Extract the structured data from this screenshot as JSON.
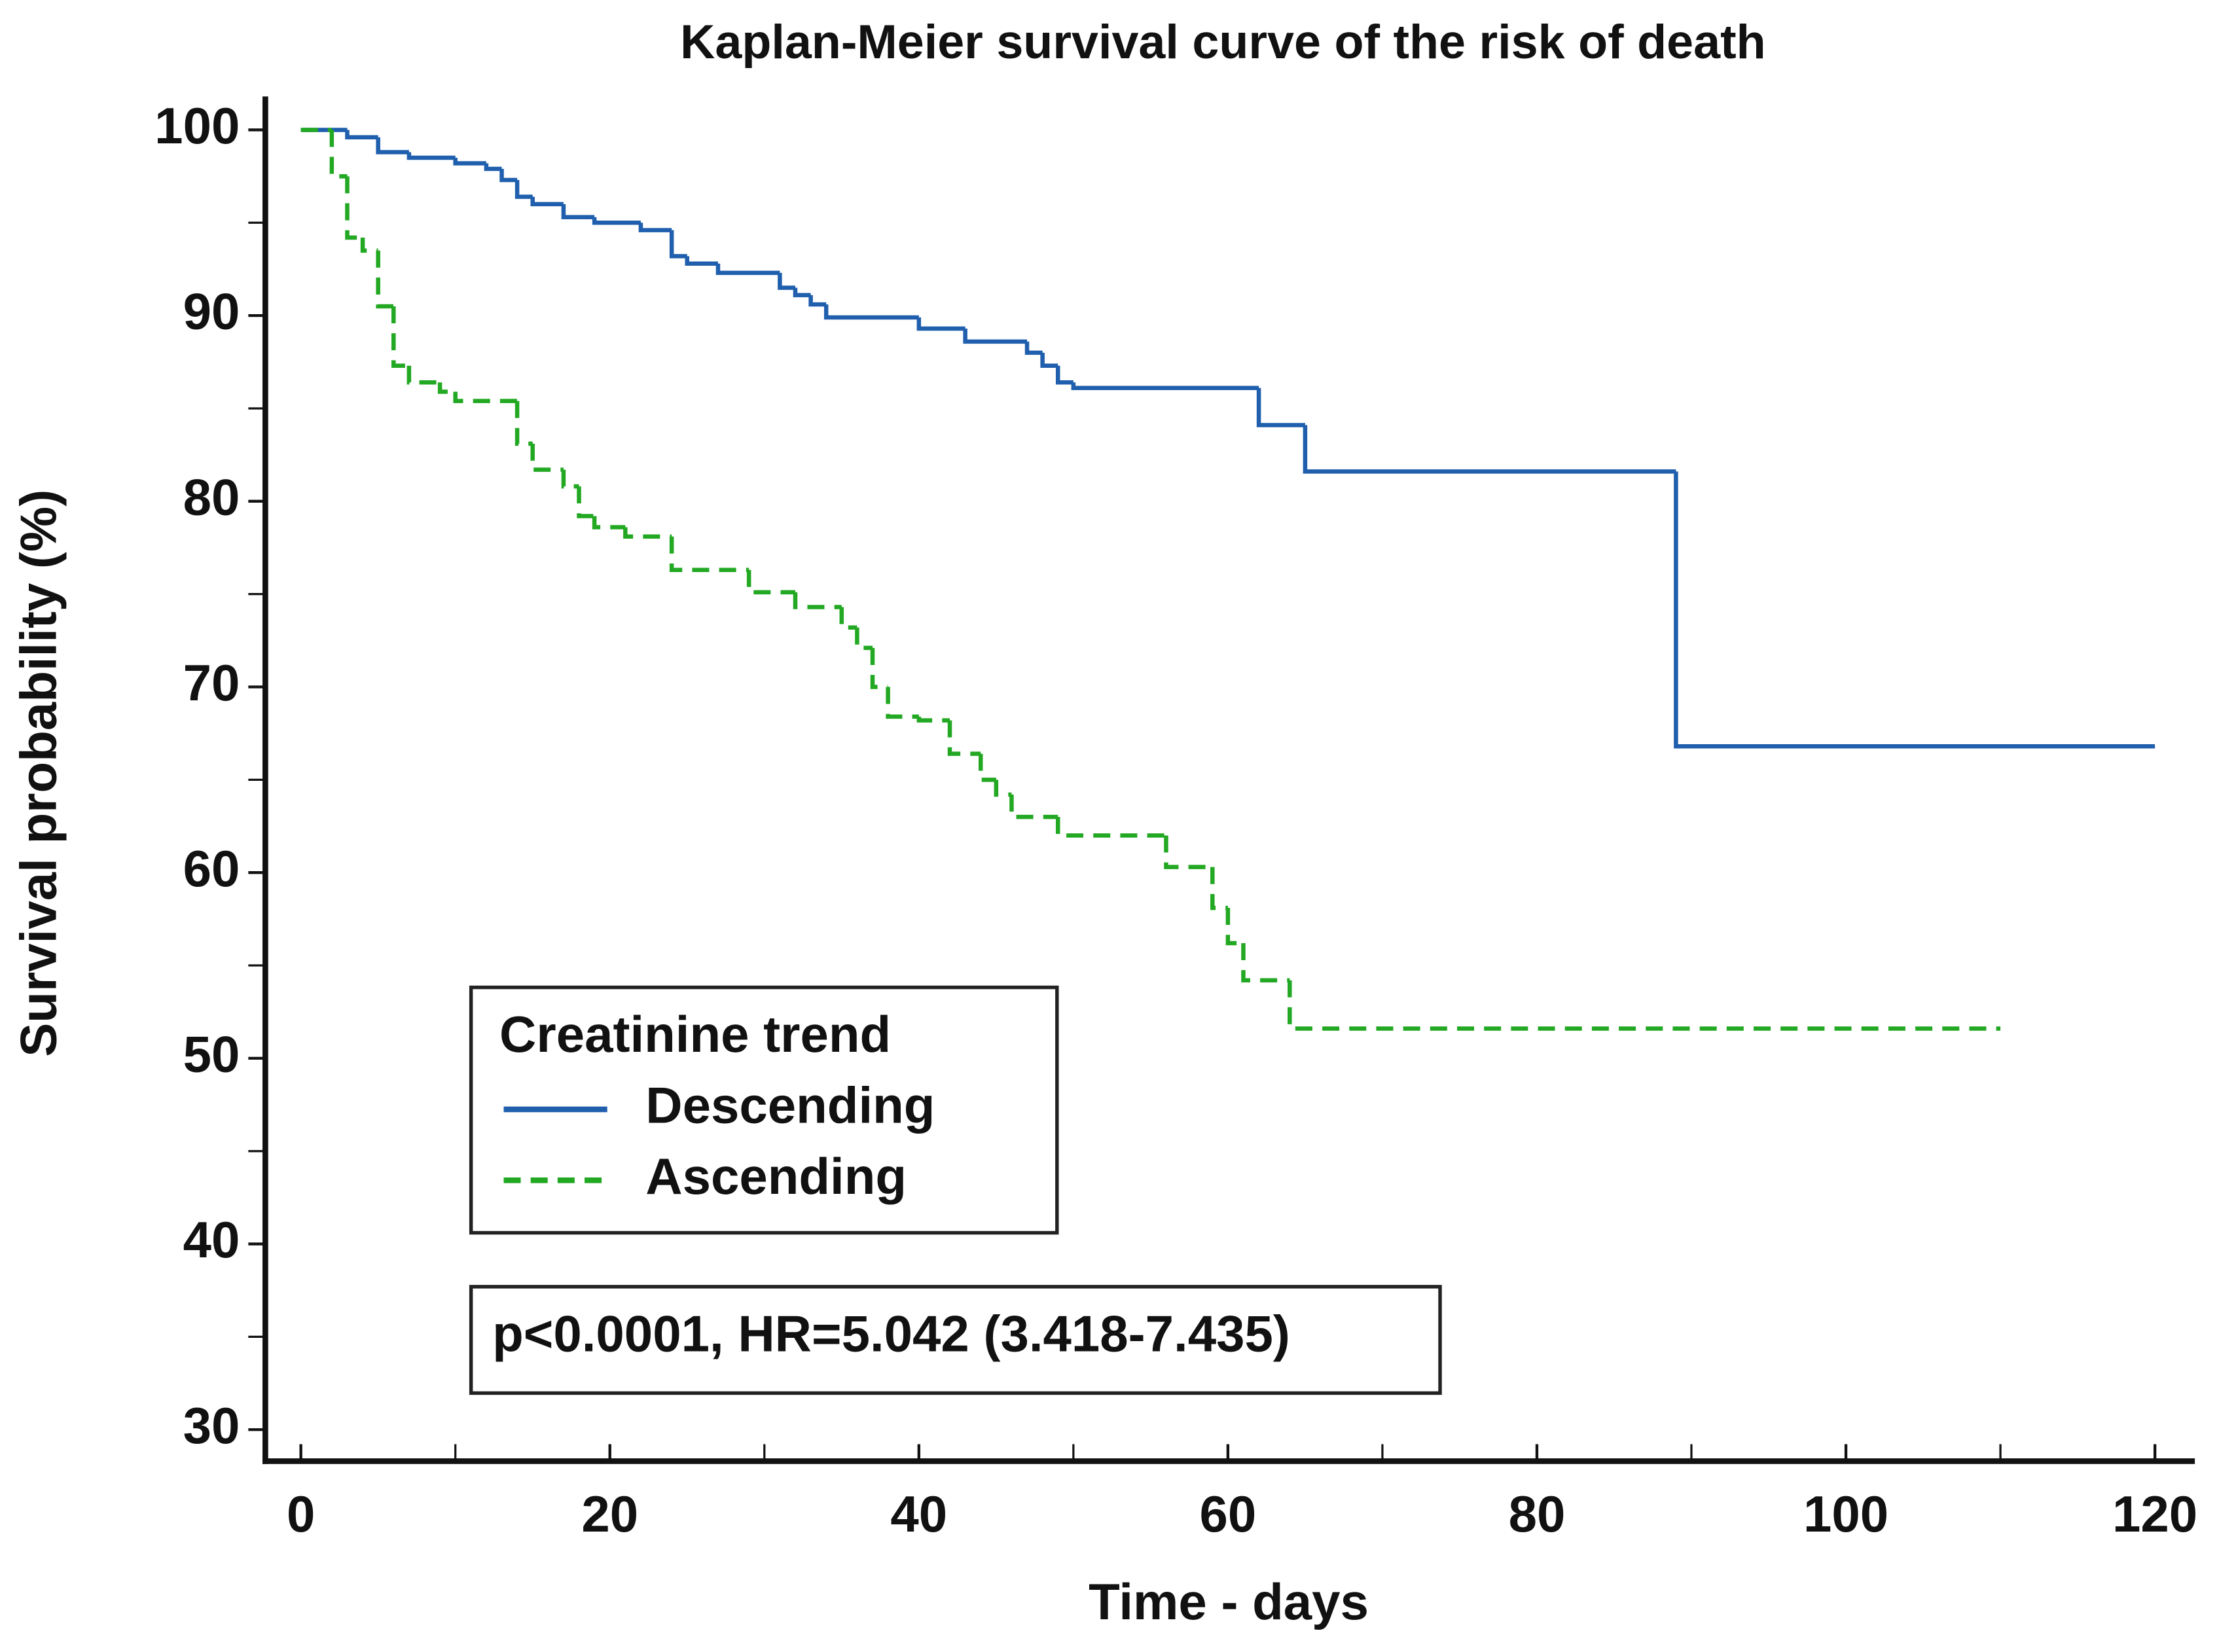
{
  "chart_data": {
    "type": "step",
    "title": "Kaplan-Meier survival curve of the risk of death",
    "x_label": "Time - days",
    "y_label": "Survival probability (%)",
    "xlim": [
      -2.3,
      122.4
    ],
    "ylim": [
      28.3,
      101.8
    ],
    "xticks": [
      0,
      20,
      40,
      60,
      80,
      100,
      120
    ],
    "yticks": [
      30,
      40,
      50,
      60,
      70,
      80,
      90,
      100
    ],
    "xticks_minor": [
      10,
      30,
      50,
      70,
      90,
      110
    ],
    "yticks_minor": [
      35,
      45,
      55,
      65,
      75,
      85,
      95
    ],
    "legend_title": "Creatinine trend",
    "legend_position": "lower left",
    "annotation": "p<0.0001, HR=5.042 (3.418-7.435)",
    "series": [
      {
        "name": "Descending",
        "color": "#1f5fad",
        "line_style": "solid",
        "x": [
          0,
          3,
          5,
          7,
          10,
          12,
          13,
          14,
          15,
          17,
          19,
          22,
          24,
          25,
          27,
          31,
          32,
          33,
          34,
          40,
          43,
          47,
          48,
          49,
          50,
          62,
          65,
          89,
          120
        ],
        "values": [
          100,
          99.6,
          98.8,
          98.5,
          98.2,
          97.9,
          97.3,
          96.4,
          96.0,
          95.3,
          95.0,
          94.6,
          93.2,
          92.8,
          92.3,
          91.5,
          91.1,
          90.6,
          89.9,
          89.3,
          88.6,
          88.0,
          87.3,
          86.4,
          86.1,
          84.1,
          81.6,
          66.8,
          66.8
        ]
      },
      {
        "name": "Ascending",
        "color": "#22a822",
        "line_style": "dashed",
        "x": [
          0,
          2,
          3,
          4,
          5,
          6,
          7,
          9,
          10,
          14,
          15,
          17,
          18,
          19,
          21,
          24,
          29,
          32,
          35,
          36,
          37,
          38,
          40,
          42,
          44,
          45,
          46,
          49,
          56,
          59,
          60,
          61,
          64,
          110
        ],
        "values": [
          100,
          97.5,
          94.2,
          93.5,
          90.5,
          87.3,
          86.4,
          85.9,
          85.4,
          83.1,
          81.7,
          80.8,
          79.2,
          78.6,
          78.1,
          76.3,
          75.1,
          74.3,
          73.2,
          72.1,
          70.0,
          68.4,
          68.2,
          66.4,
          65.0,
          64.2,
          63.0,
          62.0,
          60.3,
          58.1,
          56.2,
          54.2,
          51.6,
          51.6
        ]
      }
    ]
  }
}
